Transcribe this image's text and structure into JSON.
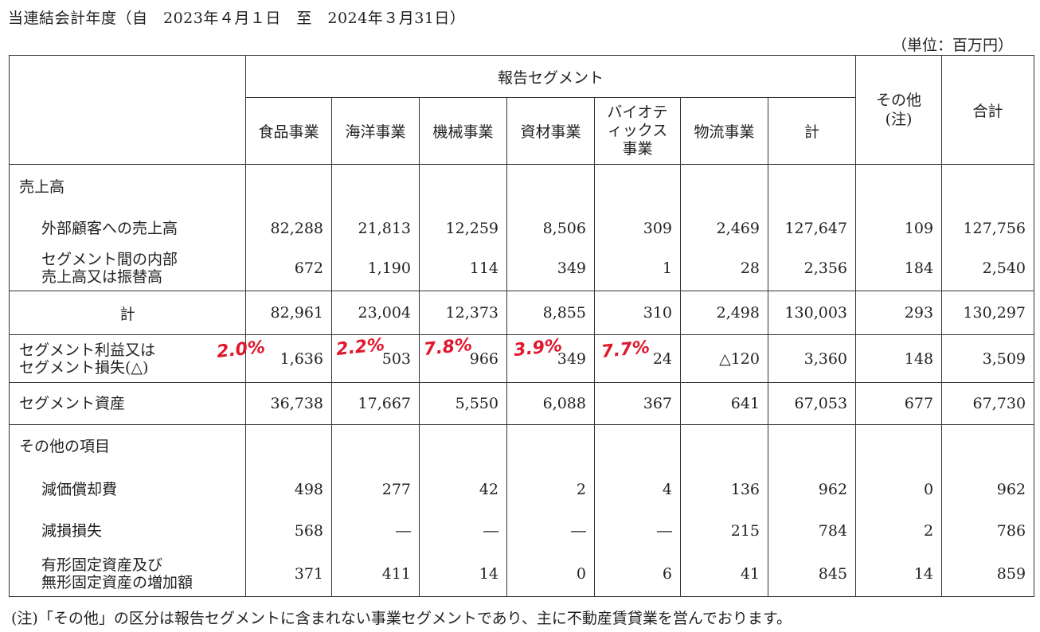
{
  "heading": "当連結会計年度（自　2023年４月１日　至　2024年３月31日）",
  "unit": "（単位：百万円）",
  "header": {
    "reported_segment": "報告セグメント",
    "columns": [
      "食品事業",
      "海洋事業",
      "機械事業",
      "資材事業",
      "バイオテ\nィックス\n事業",
      "物流事業",
      "計"
    ],
    "other_line1": "その他",
    "other_line2": "(注)",
    "total": "合計"
  },
  "rows": {
    "sales_title": "売上高",
    "external_label": "外部顧客への売上高",
    "external": [
      "82,288",
      "21,813",
      "12,259",
      "8,506",
      "309",
      "2,469",
      "127,647",
      "109",
      "127,756"
    ],
    "intersegment_label_1": "セグメント間の内部",
    "intersegment_label_2": "売上高又は振替高",
    "intersegment": [
      "672",
      "1,190",
      "114",
      "349",
      "1",
      "28",
      "2,356",
      "184",
      "2,540"
    ],
    "subtotal_label": "計",
    "subtotal": [
      "82,961",
      "23,004",
      "12,373",
      "8,855",
      "310",
      "2,498",
      "130,003",
      "293",
      "130,297"
    ],
    "profit_label_1": "セグメント利益又は",
    "profit_label_2": "セグメント損失(△)",
    "profit": [
      "1,636",
      "503",
      "966",
      "349",
      "24",
      "△120",
      "3,360",
      "148",
      "3,509"
    ],
    "assets_label": "セグメント資産",
    "assets": [
      "36,738",
      "17,667",
      "5,550",
      "6,088",
      "367",
      "641",
      "67,053",
      "677",
      "67,730"
    ],
    "other_items_title": "その他の項目",
    "depreciation_label": "減価償却費",
    "depreciation": [
      "498",
      "277",
      "42",
      "2",
      "4",
      "136",
      "962",
      "0",
      "962"
    ],
    "impairment_label": "減損損失",
    "impairment": [
      "568",
      "―",
      "―",
      "―",
      "―",
      "215",
      "784",
      "2",
      "786"
    ],
    "capex_label_1": "有形固定資産及び",
    "capex_label_2": "無形固定資産の増加額",
    "capex": [
      "371",
      "411",
      "14",
      "0",
      "6",
      "41",
      "845",
      "14",
      "859"
    ]
  },
  "annotations": [
    "2.0%",
    "2.2%",
    "7.8%",
    "3.9%",
    "7.7%"
  ],
  "footnote": "(注)「その他」の区分は報告セグメントに含まれない事業セグメントであり、主に不動産賃貸業を営んでおります。"
}
